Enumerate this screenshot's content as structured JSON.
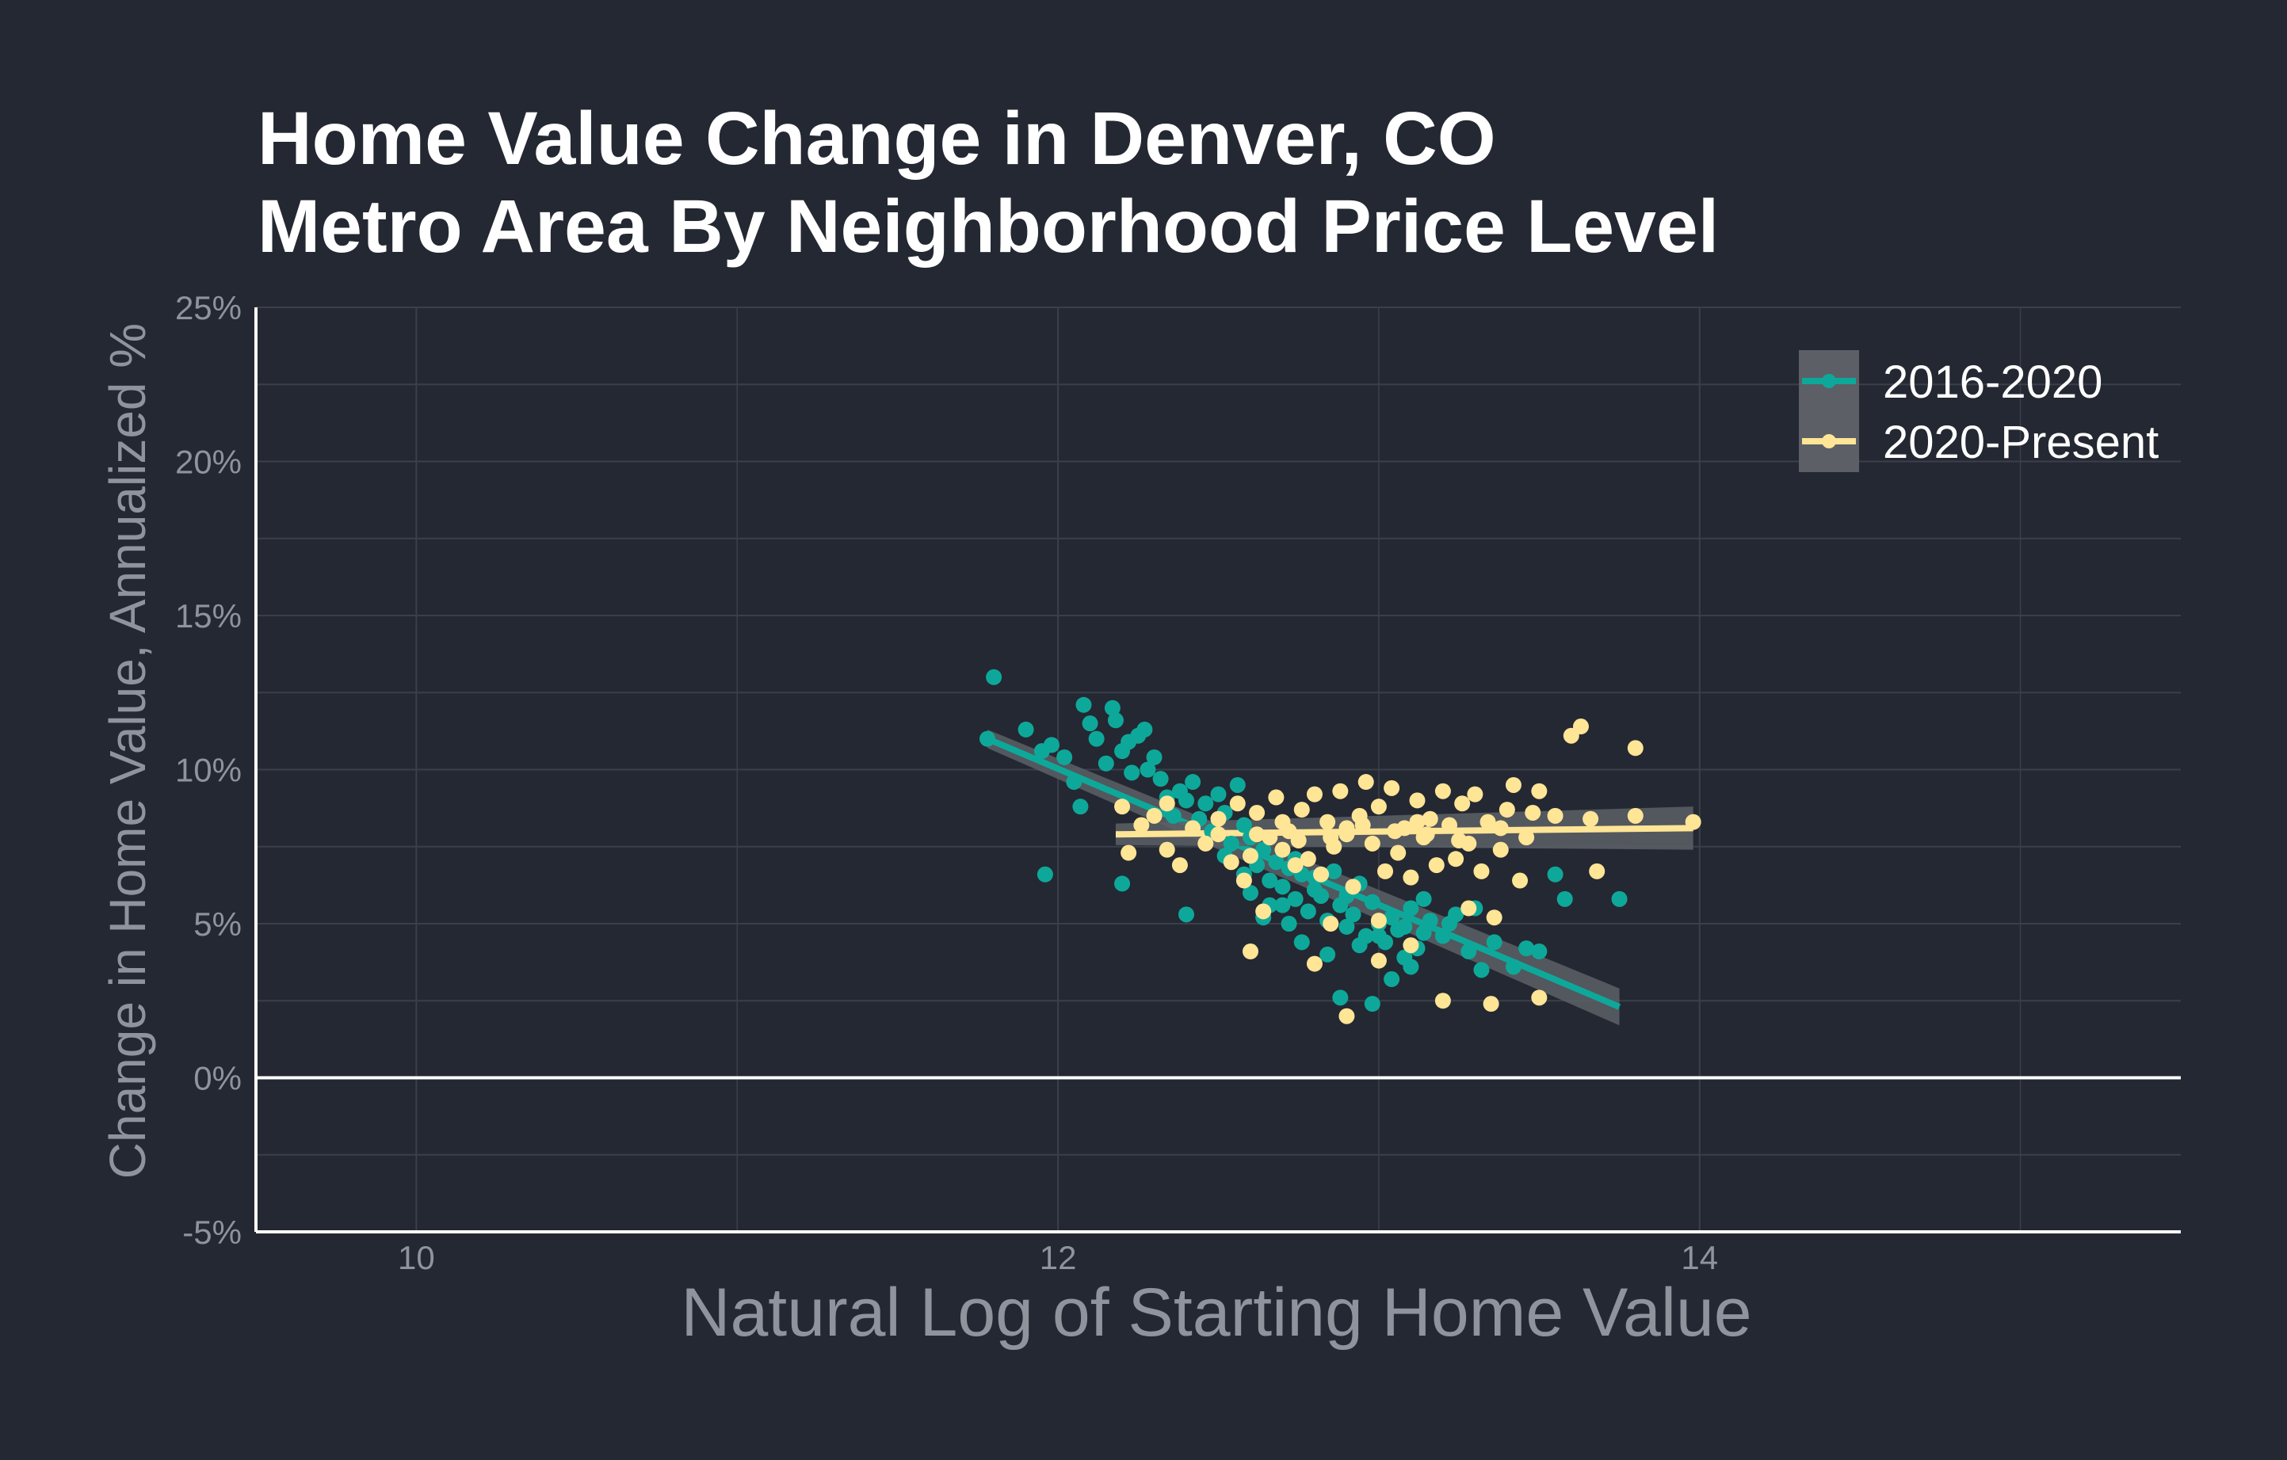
{
  "chart_data": {
    "type": "scatter",
    "title_lines": [
      "Home Value Change in Denver, CO",
      "Metro Area By Neighborhood Price Level"
    ],
    "xlabel": "Natural Log of Starting Home Value",
    "ylabel": "Change in Home Value, Annualized %",
    "xlim": [
      9.5,
      15.5
    ],
    "ylim": [
      -5,
      25
    ],
    "x_ticks": [
      {
        "value": 10,
        "label": "10"
      },
      {
        "value": 12,
        "label": "12"
      },
      {
        "value": 14,
        "label": "14"
      }
    ],
    "y_ticks": [
      {
        "value": -5,
        "label": "-5%"
      },
      {
        "value": 0,
        "label": "0%"
      },
      {
        "value": 5,
        "label": "5%"
      },
      {
        "value": 10,
        "label": "10%"
      },
      {
        "value": 15,
        "label": "15%"
      },
      {
        "value": 20,
        "label": "20%"
      },
      {
        "value": 25,
        "label": "25%"
      }
    ],
    "grid": true,
    "zero_line": 0,
    "legend_position": "top-right",
    "colors": {
      "background": "#242832",
      "grid": "#3b3f49",
      "band": "#5c5f66"
    },
    "series": [
      {
        "name": "2016-2020",
        "color": "#0ea89a",
        "fit": {
          "x": [
            11.78,
            13.75
          ],
          "y": [
            11.0,
            2.3
          ],
          "band": 0.3
        },
        "points": [
          [
            11.8,
            13.0
          ],
          [
            11.78,
            11.0
          ],
          [
            11.9,
            11.3
          ],
          [
            11.95,
            10.6
          ],
          [
            11.98,
            10.8
          ],
          [
            12.02,
            10.4
          ],
          [
            12.05,
            9.6
          ],
          [
            12.07,
            8.8
          ],
          [
            12.08,
            12.1
          ],
          [
            12.1,
            11.5
          ],
          [
            12.12,
            11.0
          ],
          [
            12.15,
            10.2
          ],
          [
            12.17,
            12.0
          ],
          [
            12.18,
            11.6
          ],
          [
            12.2,
            10.6
          ],
          [
            12.22,
            10.9
          ],
          [
            12.23,
            9.9
          ],
          [
            12.25,
            11.1
          ],
          [
            12.27,
            11.3
          ],
          [
            12.28,
            10.0
          ],
          [
            12.3,
            10.4
          ],
          [
            12.32,
            9.7
          ],
          [
            12.34,
            9.1
          ],
          [
            12.36,
            8.5
          ],
          [
            12.38,
            9.3
          ],
          [
            12.4,
            9.0
          ],
          [
            12.42,
            9.6
          ],
          [
            12.44,
            8.4
          ],
          [
            12.46,
            8.9
          ],
          [
            12.48,
            8.0
          ],
          [
            12.5,
            9.2
          ],
          [
            12.52,
            8.6
          ],
          [
            12.54,
            7.6
          ],
          [
            12.56,
            9.5
          ],
          [
            12.58,
            8.2
          ],
          [
            12.6,
            7.8
          ],
          [
            12.62,
            6.9
          ],
          [
            12.64,
            7.4
          ],
          [
            12.66,
            6.4
          ],
          [
            12.68,
            7.0
          ],
          [
            12.7,
            6.2
          ],
          [
            12.72,
            6.8
          ],
          [
            12.74,
            5.8
          ],
          [
            12.76,
            6.6
          ],
          [
            12.78,
            5.4
          ],
          [
            12.8,
            6.1
          ],
          [
            12.82,
            5.9
          ],
          [
            12.84,
            5.1
          ],
          [
            12.86,
            6.7
          ],
          [
            12.88,
            5.6
          ],
          [
            12.9,
            4.9
          ],
          [
            12.92,
            5.3
          ],
          [
            12.94,
            6.3
          ],
          [
            12.96,
            4.6
          ],
          [
            12.98,
            5.7
          ],
          [
            13.0,
            5.0
          ],
          [
            13.02,
            4.4
          ],
          [
            13.04,
            5.2
          ],
          [
            13.06,
            4.8
          ],
          [
            13.08,
            3.9
          ],
          [
            13.1,
            5.5
          ],
          [
            13.12,
            4.2
          ],
          [
            13.14,
            4.7
          ],
          [
            13.16,
            5.1
          ],
          [
            13.2,
            4.6
          ],
          [
            13.24,
            5.3
          ],
          [
            13.28,
            4.1
          ],
          [
            13.32,
            3.5
          ],
          [
            13.36,
            4.4
          ],
          [
            13.42,
            3.6
          ],
          [
            12.64,
            5.2
          ],
          [
            12.7,
            5.6
          ],
          [
            12.76,
            4.4
          ],
          [
            12.84,
            4.0
          ],
          [
            12.88,
            2.6
          ],
          [
            12.98,
            2.4
          ],
          [
            13.04,
            3.2
          ],
          [
            13.1,
            3.6
          ],
          [
            13.46,
            4.2
          ],
          [
            13.5,
            4.1
          ],
          [
            13.55,
            6.6
          ],
          [
            13.58,
            5.8
          ],
          [
            13.75,
            5.8
          ],
          [
            11.96,
            6.6
          ],
          [
            12.2,
            6.3
          ],
          [
            12.4,
            5.3
          ],
          [
            12.6,
            6.0
          ],
          [
            12.66,
            5.6
          ],
          [
            12.72,
            5.0
          ],
          [
            12.8,
            6.5
          ],
          [
            12.9,
            5.9
          ],
          [
            12.94,
            4.3
          ],
          [
            13.0,
            4.6
          ],
          [
            13.08,
            4.9
          ],
          [
            13.14,
            5.8
          ],
          [
            13.22,
            5.0
          ],
          [
            13.3,
            5.5
          ],
          [
            12.52,
            7.2
          ],
          [
            12.58,
            6.6
          ],
          [
            12.74,
            7.1
          ]
        ]
      },
      {
        "name": "2020-Present",
        "color": "#ffe596",
        "fit": {
          "x": [
            12.18,
            13.98
          ],
          "y": [
            7.9,
            8.1
          ],
          "band": 0.35
        },
        "points": [
          [
            12.2,
            8.8
          ],
          [
            12.22,
            7.3
          ],
          [
            12.26,
            8.2
          ],
          [
            12.3,
            8.5
          ],
          [
            12.34,
            7.4
          ],
          [
            12.38,
            6.9
          ],
          [
            12.42,
            8.1
          ],
          [
            12.46,
            7.6
          ],
          [
            12.5,
            8.4
          ],
          [
            12.54,
            7.0
          ],
          [
            12.56,
            8.9
          ],
          [
            12.58,
            6.4
          ],
          [
            12.6,
            7.2
          ],
          [
            12.62,
            8.6
          ],
          [
            12.64,
            5.4
          ],
          [
            12.66,
            7.8
          ],
          [
            12.68,
            9.1
          ],
          [
            12.7,
            7.4
          ],
          [
            12.72,
            8.0
          ],
          [
            12.74,
            6.9
          ],
          [
            12.76,
            8.7
          ],
          [
            12.78,
            7.1
          ],
          [
            12.8,
            9.2
          ],
          [
            12.82,
            6.6
          ],
          [
            12.84,
            8.3
          ],
          [
            12.86,
            7.5
          ],
          [
            12.88,
            9.3
          ],
          [
            12.9,
            7.9
          ],
          [
            12.92,
            6.2
          ],
          [
            12.94,
            8.5
          ],
          [
            12.96,
            9.6
          ],
          [
            12.98,
            7.6
          ],
          [
            13.0,
            8.8
          ],
          [
            13.02,
            6.7
          ],
          [
            13.04,
            9.4
          ],
          [
            13.06,
            7.3
          ],
          [
            13.08,
            8.1
          ],
          [
            13.1,
            6.5
          ],
          [
            13.12,
            9.0
          ],
          [
            13.14,
            7.8
          ],
          [
            13.16,
            8.4
          ],
          [
            13.18,
            6.9
          ],
          [
            13.2,
            9.3
          ],
          [
            13.22,
            8.2
          ],
          [
            13.24,
            7.1
          ],
          [
            13.26,
            8.9
          ],
          [
            13.28,
            7.6
          ],
          [
            13.3,
            9.2
          ],
          [
            13.32,
            6.7
          ],
          [
            13.34,
            8.3
          ],
          [
            13.36,
            5.2
          ],
          [
            13.38,
            7.4
          ],
          [
            13.4,
            8.7
          ],
          [
            13.42,
            9.5
          ],
          [
            13.44,
            6.4
          ],
          [
            13.46,
            7.8
          ],
          [
            13.48,
            8.6
          ],
          [
            13.5,
            9.3
          ],
          [
            13.55,
            8.5
          ],
          [
            13.6,
            11.1
          ],
          [
            13.63,
            11.4
          ],
          [
            13.66,
            8.4
          ],
          [
            13.68,
            6.7
          ],
          [
            13.8,
            10.7
          ],
          [
            13.8,
            8.5
          ],
          [
            13.98,
            8.3
          ],
          [
            12.34,
            8.9
          ],
          [
            12.6,
            4.1
          ],
          [
            12.8,
            3.7
          ],
          [
            12.9,
            2.0
          ],
          [
            13.0,
            3.8
          ],
          [
            13.2,
            2.5
          ],
          [
            13.35,
            2.4
          ],
          [
            13.5,
            2.6
          ],
          [
            12.85,
            5.0
          ],
          [
            13.0,
            5.1
          ],
          [
            13.1,
            4.3
          ],
          [
            13.28,
            5.5
          ],
          [
            12.7,
            8.3
          ],
          [
            12.9,
            8.1
          ],
          [
            13.05,
            8.0
          ],
          [
            13.15,
            7.9
          ],
          [
            12.75,
            7.7
          ],
          [
            12.95,
            8.2
          ],
          [
            13.12,
            8.3
          ],
          [
            12.85,
            7.8
          ],
          [
            12.62,
            7.9
          ],
          [
            13.25,
            7.7
          ],
          [
            13.38,
            8.1
          ],
          [
            12.5,
            7.9
          ]
        ]
      }
    ]
  }
}
